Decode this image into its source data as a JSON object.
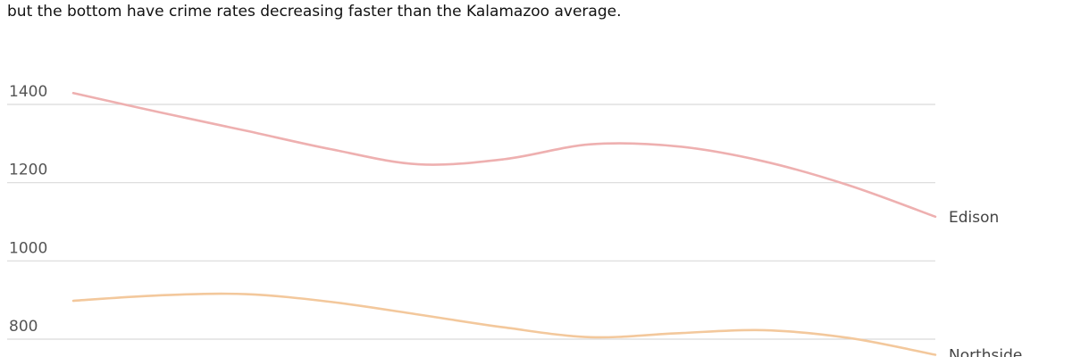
{
  "caption": "but the bottom have crime rates decreasing faster than the Kalamazoo average.",
  "chart_data": {
    "type": "line",
    "title": "",
    "xlabel": "",
    "ylabel": "",
    "x": [
      0,
      1,
      2,
      3,
      4,
      5,
      6,
      7,
      8,
      9,
      10
    ],
    "ylim": [
      760,
      1430
    ],
    "yticks": [
      800,
      1000,
      1200,
      1400
    ],
    "grid": true,
    "legend": "inline labels at line ends",
    "series": [
      {
        "name": "Edison",
        "color": "#eeb0b0",
        "values": [
          1429,
          1380,
          1333,
          1285,
          1247,
          1260,
          1298,
          1293,
          1255,
          1193,
          1113
        ]
      },
      {
        "name": "Northside",
        "color": "#f3c89c",
        "values": [
          898,
          912,
          915,
          895,
          863,
          830,
          805,
          815,
          823,
          803,
          760
        ]
      }
    ]
  }
}
